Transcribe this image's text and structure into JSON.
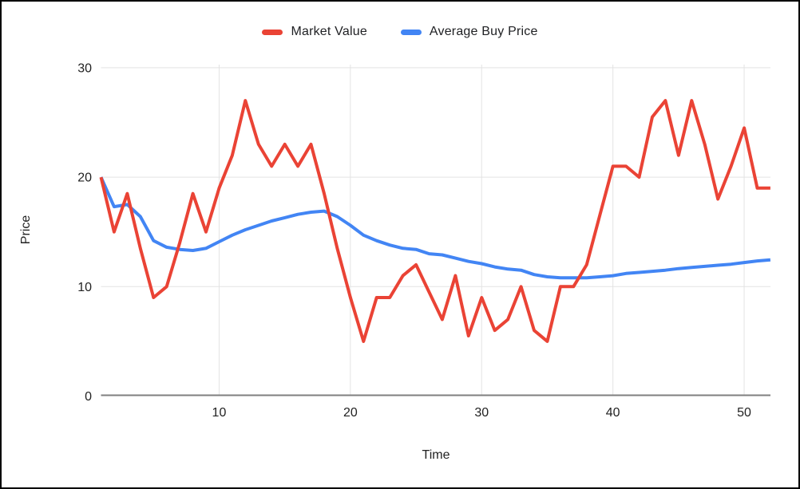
{
  "legend": [
    {
      "label": "Market Value",
      "color": "#EA4335"
    },
    {
      "label": "Average Buy Price",
      "color": "#4285F4"
    }
  ],
  "axes": {
    "x": {
      "title": "Time",
      "ticks": [
        10,
        20,
        30,
        40,
        50
      ]
    },
    "y": {
      "title": "Price",
      "ticks": [
        0,
        10,
        20,
        30
      ]
    }
  },
  "chart_data": {
    "type": "line",
    "title": "",
    "xlabel": "Time",
    "ylabel": "Price",
    "xlim": [
      1,
      52
    ],
    "ylim": [
      0,
      30
    ],
    "xticks": [
      10,
      20,
      30,
      40,
      50
    ],
    "yticks": [
      0,
      10,
      20,
      30
    ],
    "grid": true,
    "legend_position": "top",
    "x": [
      1,
      2,
      3,
      4,
      5,
      6,
      7,
      8,
      9,
      10,
      11,
      12,
      13,
      14,
      15,
      16,
      17,
      18,
      19,
      20,
      21,
      22,
      23,
      24,
      25,
      26,
      27,
      28,
      29,
      30,
      31,
      32,
      33,
      34,
      35,
      36,
      37,
      38,
      39,
      40,
      41,
      42,
      43,
      44,
      45,
      46,
      47,
      48,
      49,
      50,
      51,
      52
    ],
    "series": [
      {
        "name": "Market Value",
        "color": "#EA4335",
        "values": [
          20,
          15,
          18.5,
          13.5,
          9,
          10,
          14,
          18.5,
          15,
          19,
          22,
          27,
          23,
          21,
          23,
          21,
          23,
          18.5,
          13.5,
          9,
          5,
          9,
          9,
          11,
          12,
          9.5,
          7,
          11,
          5.5,
          9,
          6,
          7,
          10,
          6,
          5,
          10,
          10,
          12,
          16.5,
          21,
          21,
          20,
          25.5,
          27,
          22,
          27,
          23,
          18,
          21,
          24.5,
          19,
          19
        ]
      },
      {
        "name": "Average Buy Price",
        "color": "#4285F4",
        "values": [
          20,
          17.3,
          17.5,
          16.4,
          14.2,
          13.6,
          13.4,
          13.3,
          13.5,
          14.1,
          14.7,
          15.2,
          15.6,
          16.0,
          16.3,
          16.6,
          16.8,
          16.9,
          16.4,
          15.6,
          14.7,
          14.2,
          13.8,
          13.5,
          13.4,
          13.0,
          12.9,
          12.6,
          12.3,
          12.1,
          11.8,
          11.6,
          11.5,
          11.1,
          10.9,
          10.8,
          10.8,
          10.8,
          10.9,
          11.0,
          11.2,
          11.3,
          11.4,
          11.5,
          11.65,
          11.75,
          11.85,
          11.95,
          12.05,
          12.2,
          12.35,
          12.45
        ]
      }
    ],
    "style": {
      "grid_color": "#E3E3E3",
      "axis_color": "#7F7F7F",
      "label_color": "#222222",
      "line_width": 4
    }
  }
}
